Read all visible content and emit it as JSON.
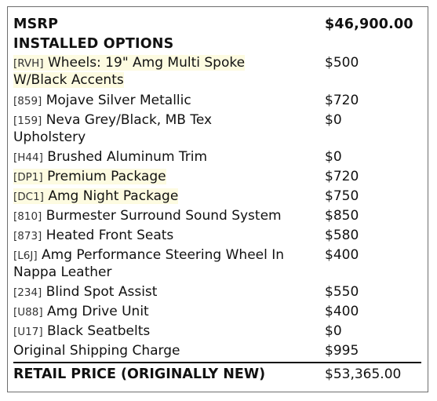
{
  "msrp": {
    "label": "MSRP",
    "value": "$46,900.00"
  },
  "installed_options_heading": "INSTALLED OPTIONS",
  "options": [
    {
      "code": "[RVH]",
      "name": "Wheels: 19\" Amg Multi Spoke",
      "name_line2": "W/Black Accents",
      "price": "$500",
      "highlighted": true
    },
    {
      "code": "[859]",
      "name": "Mojave Silver Metallic",
      "price": "$720",
      "highlighted": false
    },
    {
      "code": "[159]",
      "name": "Neva Grey/Black, MB Tex",
      "name_line2": "Upholstery",
      "price": "$0",
      "highlighted": false
    },
    {
      "code": "[H44]",
      "name": "Brushed Aluminum Trim",
      "price": "$0",
      "highlighted": false
    },
    {
      "code": "[DP1]",
      "name": "Premium Package",
      "price": "$720",
      "highlighted": true
    },
    {
      "code": "[DC1]",
      "name": "Amg Night Package",
      "price": "$750",
      "highlighted": true
    },
    {
      "code": "[810]",
      "name": "Burmester Surround Sound System",
      "price": "$850",
      "highlighted": false
    },
    {
      "code": "[873]",
      "name": "Heated Front Seats",
      "price": "$580",
      "highlighted": false
    },
    {
      "code": "[L6J]",
      "name": "Amg Performance Steering Wheel In",
      "name_line2": "Nappa Leather",
      "price": "$400",
      "highlighted": false
    },
    {
      "code": "[234]",
      "name": "Blind Spot Assist",
      "price": "$550",
      "highlighted": false
    },
    {
      "code": "[U88]",
      "name": "Amg Drive Unit",
      "price": "$400",
      "highlighted": false
    },
    {
      "code": "[U17]",
      "name": "Black Seatbelts",
      "price": "$0",
      "highlighted": false
    }
  ],
  "shipping": {
    "label": "Original Shipping Charge",
    "value": "$995"
  },
  "retail": {
    "label": "RETAIL PRICE (ORIGINALLY NEW)",
    "value": "$53,365.00"
  },
  "colors": {
    "highlight": "#fdfbe1",
    "border": "#6e6e6e",
    "text": "#111111"
  }
}
